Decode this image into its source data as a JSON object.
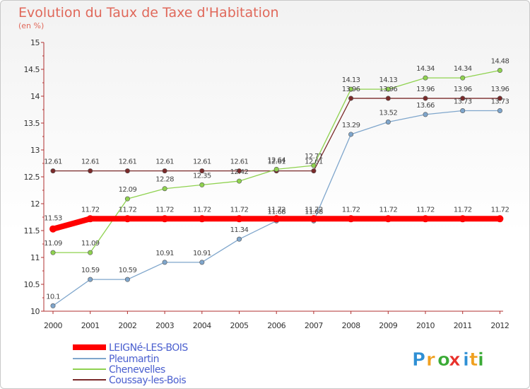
{
  "chart_data": {
    "type": "line",
    "title": "Evolution du Taux de Taxe d'Habitation",
    "subtitle": "(en %)",
    "x": [
      "2000",
      "2001",
      "2002",
      "2003",
      "2004",
      "2005",
      "2006",
      "2007",
      "2008",
      "2009",
      "2010",
      "2011",
      "2012"
    ],
    "ylim": [
      10,
      15
    ],
    "yticks": [
      "10",
      "10.5",
      "11",
      "11.5",
      "12",
      "12.5",
      "13",
      "13.5",
      "14",
      "14.5",
      "15"
    ],
    "grid": false,
    "legend": "bottom-left",
    "series": [
      {
        "name": "LEIGNé-LES-BOIS",
        "color": "#ff0000",
        "values": [
          11.53,
          11.72,
          11.72,
          11.72,
          11.72,
          11.72,
          11.72,
          11.72,
          11.72,
          11.72,
          11.72,
          11.72,
          11.72
        ]
      },
      {
        "name": "Pleumartin",
        "color": "#7fa6cc",
        "values": [
          10.1,
          10.59,
          10.59,
          10.91,
          10.91,
          11.34,
          11.68,
          11.68,
          13.29,
          13.52,
          13.66,
          13.73,
          13.73
        ]
      },
      {
        "name": "Chenevelles",
        "color": "#8fd24f",
        "values": [
          11.09,
          11.09,
          12.09,
          12.28,
          12.35,
          12.42,
          12.64,
          12.71,
          14.13,
          14.13,
          14.34,
          14.34,
          14.48
        ]
      },
      {
        "name": "Coussay-les-Bois",
        "color": "#7a2a2a",
        "values": [
          12.61,
          12.61,
          12.61,
          12.61,
          12.61,
          12.61,
          12.61,
          12.61,
          13.96,
          13.96,
          13.96,
          13.96,
          13.96
        ]
      }
    ]
  },
  "logo": {
    "letters": [
      "P",
      "r",
      "o",
      "x",
      "i",
      "t",
      "i"
    ],
    "colors": [
      "#2e8fd4",
      "#f0a020",
      "#3aaa35",
      "#e8302a",
      "#2e8fd4",
      "#f0a020",
      "#3aaa35"
    ]
  }
}
